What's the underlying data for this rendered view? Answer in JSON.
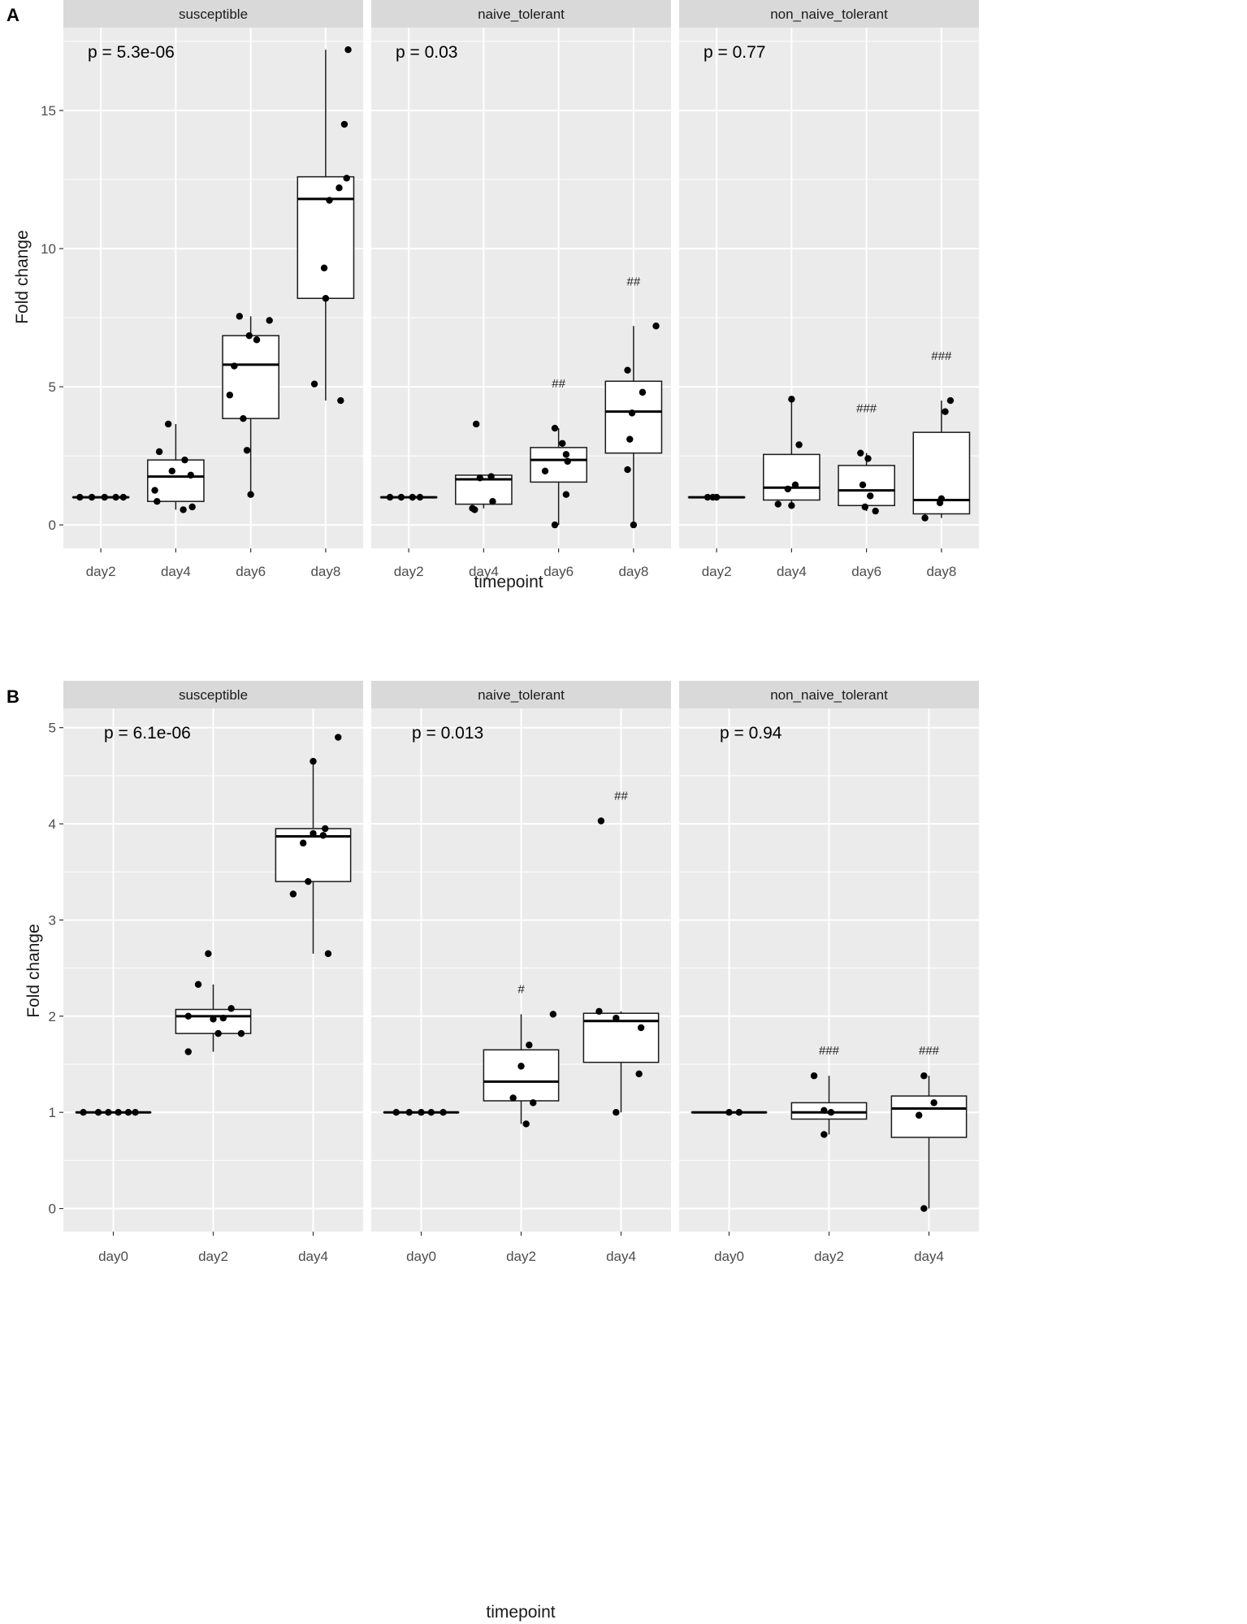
{
  "chart_data": [
    {
      "panel_label": "A",
      "type": "boxplot",
      "facet_type": "facet_wrap",
      "ylabel": "Fold change",
      "xlabel": "timepoint",
      "ylim": [
        -0.85,
        18.0
      ],
      "yticks": [
        0,
        5,
        10,
        15
      ],
      "categories": [
        "day2",
        "day4",
        "day6",
        "day8"
      ],
      "facets": [
        {
          "name": "susceptible",
          "pvalue": "p = 5.3e-06",
          "groups": [
            {
              "category": "day2",
              "q1": 1.0,
              "median": 1.0,
              "q3": 1.0,
              "whisker_low": 1.0,
              "whisker_high": 1.0,
              "annotation": "",
              "points": [
                [
                  -0.28,
                  1.0
                ],
                [
                  -0.12,
                  1.0
                ],
                [
                  0.05,
                  1.0
                ],
                [
                  0.2,
                  1.0
                ],
                [
                  0.3,
                  1.0
                ]
              ]
            },
            {
              "category": "day4",
              "q1": 0.85,
              "median": 1.75,
              "q3": 2.35,
              "whisker_low": 0.55,
              "whisker_high": 3.65,
              "annotation": "",
              "points": [
                [
                  -0.1,
                  3.65
                ],
                [
                  -0.22,
                  2.65
                ],
                [
                  0.12,
                  2.35
                ],
                [
                  -0.05,
                  1.95
                ],
                [
                  0.2,
                  1.8
                ],
                [
                  -0.28,
                  1.25
                ],
                [
                  -0.25,
                  0.85
                ],
                [
                  0.1,
                  0.55
                ],
                [
                  0.22,
                  0.65
                ]
              ]
            },
            {
              "category": "day6",
              "q1": 3.85,
              "median": 5.8,
              "q3": 6.85,
              "whisker_low": 1.1,
              "whisker_high": 7.55,
              "annotation": "",
              "points": [
                [
                  -0.15,
                  7.55
                ],
                [
                  0.25,
                  7.4
                ],
                [
                  -0.02,
                  6.85
                ],
                [
                  0.08,
                  6.7
                ],
                [
                  -0.22,
                  5.75
                ],
                [
                  -0.28,
                  4.7
                ],
                [
                  -0.1,
                  3.85
                ],
                [
                  -0.05,
                  2.7
                ],
                [
                  0.0,
                  1.1
                ]
              ]
            },
            {
              "category": "day8",
              "q1": 8.2,
              "median": 11.8,
              "q3": 12.6,
              "whisker_low": 4.5,
              "whisker_high": 17.2,
              "annotation": "",
              "points": [
                [
                  0.3,
                  17.2
                ],
                [
                  0.25,
                  14.5
                ],
                [
                  0.28,
                  12.55
                ],
                [
                  0.18,
                  12.2
                ],
                [
                  0.05,
                  11.75
                ],
                [
                  -0.02,
                  9.3
                ],
                [
                  0.0,
                  8.2
                ],
                [
                  -0.15,
                  5.1
                ],
                [
                  0.2,
                  4.5
                ]
              ]
            }
          ]
        },
        {
          "name": "naive_tolerant",
          "pvalue": "p = 0.03",
          "groups": [
            {
              "category": "day2",
              "q1": 1.0,
              "median": 1.0,
              "q3": 1.0,
              "whisker_low": 1.0,
              "whisker_high": 1.0,
              "annotation": "",
              "points": [
                [
                  -0.25,
                  1.0
                ],
                [
                  -0.1,
                  1.0
                ],
                [
                  0.05,
                  1.0
                ],
                [
                  0.15,
                  1.0
                ]
              ]
            },
            {
              "category": "day4",
              "q1": 0.75,
              "median": 1.65,
              "q3": 1.8,
              "whisker_low": 0.6,
              "whisker_high": 1.8,
              "annotation": "",
              "points": [
                [
                  -0.1,
                  3.65
                ],
                [
                  0.1,
                  1.75
                ],
                [
                  -0.05,
                  1.7
                ],
                [
                  0.12,
                  0.85
                ],
                [
                  -0.15,
                  0.6
                ],
                [
                  -0.12,
                  0.55
                ]
              ]
            },
            {
              "category": "day6",
              "q1": 1.55,
              "median": 2.35,
              "q3": 2.8,
              "whisker_low": 0.0,
              "whisker_high": 3.5,
              "annotation": "##",
              "points": [
                [
                  -0.05,
                  3.5
                ],
                [
                  0.05,
                  2.95
                ],
                [
                  0.1,
                  2.55
                ],
                [
                  -0.18,
                  1.95
                ],
                [
                  0.12,
                  2.3
                ],
                [
                  0.1,
                  1.1
                ],
                [
                  -0.05,
                  0.0
                ]
              ]
            },
            {
              "category": "day8",
              "q1": 2.6,
              "median": 4.1,
              "q3": 5.2,
              "whisker_low": 0.0,
              "whisker_high": 7.2,
              "annotation": "##",
              "points": [
                [
                  0.3,
                  7.2
                ],
                [
                  -0.08,
                  5.6
                ],
                [
                  0.12,
                  4.8
                ],
                [
                  -0.02,
                  4.05
                ],
                [
                  -0.05,
                  3.1
                ],
                [
                  -0.08,
                  2.0
                ],
                [
                  0.0,
                  0.0
                ]
              ]
            }
          ]
        },
        {
          "name": "non_naive_tolerant",
          "pvalue": "p = 0.77",
          "groups": [
            {
              "category": "day2",
              "q1": 1.0,
              "median": 1.0,
              "q3": 1.0,
              "whisker_low": 1.0,
              "whisker_high": 1.0,
              "annotation": "",
              "points": [
                [
                  -0.12,
                  1.0
                ],
                [
                  -0.05,
                  1.0
                ],
                [
                  0.0,
                  1.0
                ]
              ]
            },
            {
              "category": "day4",
              "q1": 0.9,
              "median": 1.35,
              "q3": 2.55,
              "whisker_low": 0.7,
              "whisker_high": 4.55,
              "annotation": "",
              "points": [
                [
                  0.0,
                  4.55
                ],
                [
                  0.1,
                  2.9
                ],
                [
                  0.05,
                  1.45
                ],
                [
                  -0.05,
                  1.3
                ],
                [
                  -0.18,
                  0.75
                ],
                [
                  0.0,
                  0.7
                ]
              ]
            },
            {
              "category": "day6",
              "q1": 0.7,
              "median": 1.25,
              "q3": 2.15,
              "whisker_low": 0.5,
              "whisker_high": 2.6,
              "annotation": "###",
              "points": [
                [
                  -0.08,
                  2.6
                ],
                [
                  0.02,
                  2.4
                ],
                [
                  -0.05,
                  1.45
                ],
                [
                  0.05,
                  1.05
                ],
                [
                  -0.02,
                  0.65
                ],
                [
                  0.12,
                  0.5
                ]
              ]
            },
            {
              "category": "day8",
              "q1": 0.4,
              "median": 0.9,
              "q3": 3.35,
              "whisker_low": 0.25,
              "whisker_high": 4.5,
              "annotation": "###",
              "points": [
                [
                  0.12,
                  4.5
                ],
                [
                  0.05,
                  4.1
                ],
                [
                  0.0,
                  0.95
                ],
                [
                  -0.02,
                  0.8
                ],
                [
                  -0.22,
                  0.25
                ]
              ]
            }
          ]
        }
      ]
    },
    {
      "panel_label": "B",
      "type": "boxplot",
      "facet_type": "facet_wrap",
      "ylabel": "Fold change",
      "xlabel": "timepoint",
      "ylim": [
        -0.24,
        5.2
      ],
      "yticks": [
        0,
        1,
        2,
        3,
        4,
        5
      ],
      "categories": [
        "day0",
        "day2",
        "day4"
      ],
      "facets": [
        {
          "name": "susceptible",
          "pvalue": "p = 6.1e-06",
          "groups": [
            {
              "category": "day0",
              "q1": 1.0,
              "median": 1.0,
              "q3": 1.0,
              "whisker_low": 1.0,
              "whisker_high": 1.0,
              "annotation": "",
              "points": [
                [
                  -0.3,
                  1.0
                ],
                [
                  -0.15,
                  1.0
                ],
                [
                  -0.05,
                  1.0
                ],
                [
                  0.05,
                  1.0
                ],
                [
                  0.15,
                  1.0
                ],
                [
                  0.22,
                  1.0
                ]
              ]
            },
            {
              "category": "day2",
              "q1": 1.82,
              "median": 2.0,
              "q3": 2.07,
              "whisker_low": 1.63,
              "whisker_high": 2.33,
              "annotation": "",
              "points": [
                [
                  -0.05,
                  2.65
                ],
                [
                  -0.15,
                  2.33
                ],
                [
                  0.18,
                  2.08
                ],
                [
                  -0.25,
                  2.0
                ],
                [
                  0.0,
                  1.97
                ],
                [
                  0.1,
                  1.98
                ],
                [
                  0.05,
                  1.82
                ],
                [
                  0.28,
                  1.82
                ],
                [
                  -0.25,
                  1.63
                ]
              ]
            },
            {
              "category": "day4",
              "q1": 3.4,
              "median": 3.87,
              "q3": 3.95,
              "whisker_low": 2.65,
              "whisker_high": 4.65,
              "annotation": "",
              "points": [
                [
                  0.25,
                  4.9
                ],
                [
                  0.0,
                  4.65
                ],
                [
                  0.12,
                  3.95
                ],
                [
                  0.0,
                  3.9
                ],
                [
                  0.1,
                  3.88
                ],
                [
                  -0.1,
                  3.8
                ],
                [
                  -0.05,
                  3.4
                ],
                [
                  -0.2,
                  3.27
                ],
                [
                  0.15,
                  2.65
                ]
              ]
            }
          ]
        },
        {
          "name": "naive_tolerant",
          "pvalue": "p = 0.013",
          "groups": [
            {
              "category": "day0",
              "q1": 1.0,
              "median": 1.0,
              "q3": 1.0,
              "whisker_low": 1.0,
              "whisker_high": 1.0,
              "annotation": "",
              "points": [
                [
                  -0.25,
                  1.0
                ],
                [
                  -0.12,
                  1.0
                ],
                [
                  0.0,
                  1.0
                ],
                [
                  0.1,
                  1.0
                ],
                [
                  0.22,
                  1.0
                ]
              ]
            },
            {
              "category": "day2",
              "q1": 1.12,
              "median": 1.32,
              "q3": 1.65,
              "whisker_low": 0.88,
              "whisker_high": 2.02,
              "annotation": "#",
              "points": [
                [
                  0.32,
                  2.02
                ],
                [
                  0.08,
                  1.7
                ],
                [
                  0.0,
                  1.48
                ],
                [
                  -0.08,
                  1.15
                ],
                [
                  0.12,
                  1.1
                ],
                [
                  0.05,
                  0.88
                ]
              ]
            },
            {
              "category": "day4",
              "q1": 1.52,
              "median": 1.95,
              "q3": 2.03,
              "whisker_low": 1.0,
              "whisker_high": 2.05,
              "annotation": "##",
              "points": [
                [
                  -0.2,
                  4.03
                ],
                [
                  -0.22,
                  2.05
                ],
                [
                  -0.05,
                  1.98
                ],
                [
                  0.2,
                  1.88
                ],
                [
                  0.18,
                  1.4
                ],
                [
                  -0.05,
                  1.0
                ]
              ]
            }
          ]
        },
        {
          "name": "non_naive_tolerant",
          "pvalue": "p = 0.94",
          "groups": [
            {
              "category": "day0",
              "q1": 1.0,
              "median": 1.0,
              "q3": 1.0,
              "whisker_low": 1.0,
              "whisker_high": 1.0,
              "annotation": "",
              "points": [
                [
                  0.0,
                  1.0
                ],
                [
                  0.1,
                  1.0
                ]
              ]
            },
            {
              "category": "day2",
              "q1": 0.93,
              "median": 1.0,
              "q3": 1.1,
              "whisker_low": 0.77,
              "whisker_high": 1.38,
              "annotation": "###",
              "points": [
                [
                  -0.15,
                  1.38
                ],
                [
                  -0.05,
                  1.02
                ],
                [
                  0.02,
                  1.0
                ],
                [
                  -0.05,
                  0.77
                ]
              ]
            },
            {
              "category": "day4",
              "q1": 0.74,
              "median": 1.04,
              "q3": 1.17,
              "whisker_low": 0.0,
              "whisker_high": 1.38,
              "annotation": "###",
              "points": [
                [
                  -0.05,
                  1.38
                ],
                [
                  0.05,
                  1.1
                ],
                [
                  -0.1,
                  0.97
                ],
                [
                  -0.05,
                  0.0
                ]
              ]
            }
          ]
        }
      ]
    }
  ]
}
